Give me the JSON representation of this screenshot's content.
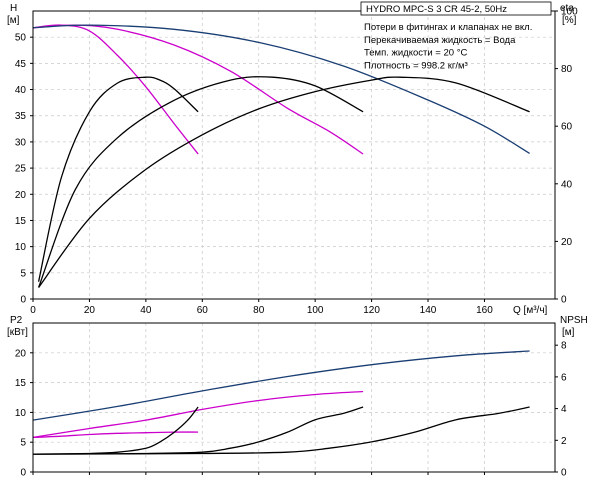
{
  "chart_data": {
    "type": "line",
    "title": "HYDRO MPC-S 3 CR 45-2, 50Hz",
    "notes": [
      "Потери в фитингах и клапанах не вкл.",
      "Перекачиваемая жидкость = Вода",
      "Темп. жидкости = 20 °C",
      "Плотность = 998.2 кг/м³"
    ],
    "x_axis": {
      "label": "Q [м³/ч]",
      "lim": [
        0,
        185
      ],
      "ticks": [
        "0",
        "20",
        "40",
        "60",
        "80",
        "100",
        "120",
        "140",
        "160"
      ]
    },
    "grid": true,
    "top_panel": {
      "left_axis": {
        "label": "H",
        "unit": "[м]",
        "lim": [
          0,
          55
        ],
        "ticks": [
          "0",
          "5",
          "10",
          "15",
          "20",
          "25",
          "30",
          "35",
          "40",
          "45",
          "50"
        ]
      },
      "right_axis": {
        "label": "eta",
        "unit": "[%]",
        "lim": [
          0,
          100
        ],
        "ticks": [
          "0",
          "20",
          "40",
          "60",
          "80",
          "100"
        ]
      },
      "series": [
        {
          "kind": "head",
          "color": "#cc00cc",
          "x": [
            0,
            10,
            20,
            30,
            40,
            50,
            58.5
          ],
          "y": [
            51.8,
            52.3,
            51.2,
            46.5,
            40.5,
            33.5,
            27.7
          ]
        },
        {
          "kind": "head",
          "color": "#cc00cc",
          "x": [
            0,
            15,
            30,
            50,
            70,
            90,
            105,
            117
          ],
          "y": [
            51.8,
            52.3,
            51.5,
            48.5,
            43.5,
            36.5,
            32.0,
            27.7
          ]
        },
        {
          "kind": "head",
          "color": "#1a3e73",
          "x": [
            0,
            20,
            50,
            80,
            110,
            140,
            160,
            176
          ],
          "y": [
            51.8,
            52.3,
            51.5,
            49.0,
            44.5,
            38.0,
            33.0,
            27.8
          ]
        },
        {
          "kind": "efficiency",
          "color": "#000000",
          "x": [
            2,
            10,
            20,
            30,
            40,
            45,
            50,
            58.5
          ],
          "y": [
            6,
            42,
            65,
            75,
            77,
            76,
            73,
            65
          ]
        },
        {
          "kind": "efficiency",
          "color": "#000000",
          "x": [
            2,
            15,
            30,
            50,
            70,
            85,
            100,
            117
          ],
          "y": [
            4,
            38,
            56,
            69,
            76,
            77,
            74,
            65
          ]
        },
        {
          "kind": "efficiency",
          "color": "#000000",
          "x": [
            2,
            20,
            40,
            60,
            80,
            100,
            120,
            130,
            150,
            176
          ],
          "y": [
            4,
            28,
            45,
            57,
            66,
            72,
            76,
            77,
            75,
            65
          ]
        }
      ]
    },
    "bottom_panel": {
      "left_axis": {
        "label": "P2",
        "unit": "[кВт]",
        "lim": [
          0,
          25
        ],
        "ticks": [
          "0",
          "5",
          "10",
          "15",
          "20"
        ]
      },
      "right_axis": {
        "label": "NPSH",
        "unit": "[м]",
        "lim": [
          0,
          9.4
        ],
        "ticks": [
          "0",
          "2",
          "4",
          "6",
          "8"
        ]
      },
      "series": [
        {
          "kind": "power",
          "color": "#cc00cc",
          "x": [
            0,
            10,
            20,
            30,
            40,
            50,
            58.5
          ],
          "y": [
            5.8,
            6.0,
            6.3,
            6.5,
            6.6,
            6.7,
            6.7
          ]
        },
        {
          "kind": "power",
          "color": "#cc00cc",
          "x": [
            0,
            20,
            40,
            60,
            80,
            100,
            117
          ],
          "y": [
            5.8,
            7.3,
            8.7,
            10.5,
            12.0,
            13.0,
            13.5
          ]
        },
        {
          "kind": "power",
          "color": "#1a3e73",
          "x": [
            0,
            30,
            60,
            90,
            120,
            150,
            176
          ],
          "y": [
            8.7,
            11.0,
            13.6,
            16.0,
            18.0,
            19.5,
            20.3
          ]
        },
        {
          "kind": "npsh",
          "color": "#000000",
          "x": [
            0,
            10,
            20,
            30,
            40,
            45,
            50,
            55,
            58.5
          ],
          "y": [
            1.13,
            1.14,
            1.17,
            1.25,
            1.5,
            1.9,
            2.5,
            3.3,
            4.1
          ]
        },
        {
          "kind": "npsh",
          "color": "#000000",
          "x": [
            0,
            20,
            40,
            60,
            70,
            80,
            90,
            100,
            110,
            117
          ],
          "y": [
            1.13,
            1.14,
            1.17,
            1.25,
            1.5,
            1.9,
            2.5,
            3.3,
            3.7,
            4.1
          ]
        },
        {
          "kind": "npsh",
          "color": "#000000",
          "x": [
            0,
            30,
            60,
            90,
            105,
            120,
            135,
            150,
            165,
            176
          ],
          "y": [
            1.13,
            1.14,
            1.17,
            1.25,
            1.5,
            1.9,
            2.5,
            3.3,
            3.7,
            4.1
          ]
        }
      ]
    }
  }
}
